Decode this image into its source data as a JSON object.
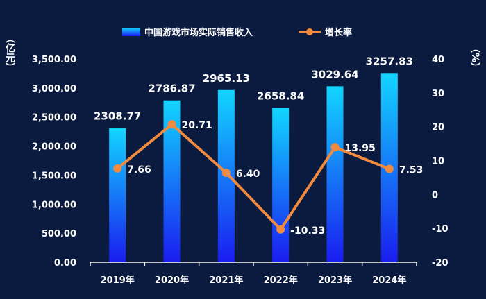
{
  "chart_data": {
    "type": "bar",
    "categories": [
      "2019年",
      "2020年",
      "2021年",
      "2022年",
      "2023年",
      "2024年"
    ],
    "series": [
      {
        "name": "中国游戏市场实际销售收入",
        "type": "bar",
        "axis": "left",
        "values": [
          2308.77,
          2786.87,
          2965.13,
          2658.84,
          3029.64,
          3257.83
        ]
      },
      {
        "name": "增长率",
        "type": "line",
        "axis": "right",
        "values": [
          7.66,
          20.71,
          6.4,
          -10.33,
          13.95,
          7.53
        ]
      }
    ],
    "data_labels_left": [
      "2308.77",
      "2786.87",
      "2965.13",
      "2658.84",
      "3029.64",
      "3257.83"
    ],
    "data_labels_right": [
      "7.66",
      "20.71",
      "6.40",
      "-10.33",
      "13.95",
      "7.53"
    ],
    "y_left": {
      "unit": "（亿元）",
      "ticks": [
        "0.00",
        "500.00",
        "1,000.00",
        "1,500.00",
        "2,000.00",
        "2,500.00",
        "3,000.00",
        "3,500.00"
      ],
      "ylim": [
        0,
        3500
      ]
    },
    "y_right": {
      "unit": "（%）",
      "ticks": [
        "-20",
        "-10",
        "0",
        "10",
        "20",
        "30",
        "40"
      ],
      "ylim": [
        -20,
        40
      ]
    },
    "legend_position": "top",
    "colors": {
      "background": "#0b1a3f",
      "bar_top": "#12d6ff",
      "bar_bottom": "#1a1cf0",
      "line": "#f08a3e"
    }
  }
}
